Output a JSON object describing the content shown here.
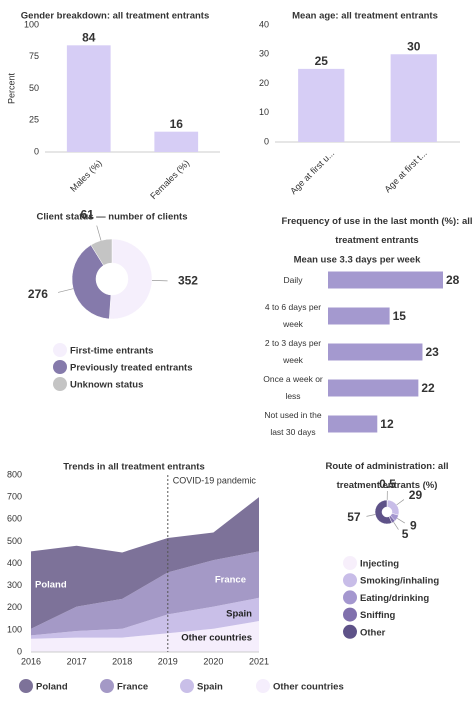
{
  "chart_data": [
    {
      "type": "bar",
      "title": "Gender breakdown: all treatment entrants",
      "ylabel": "Percent",
      "categories": [
        "Males (%)",
        "Females (%)"
      ],
      "values": [
        84,
        16
      ],
      "color": "#d6cdf5",
      "ylim": [
        0,
        100
      ],
      "yticks": [
        0,
        25,
        50,
        75,
        100
      ],
      "grid": false
    },
    {
      "type": "bar",
      "title": "Mean age: all treatment entrants",
      "categories": [
        "Age at first u...",
        "Age at first t..."
      ],
      "values": [
        25,
        30
      ],
      "color": "#d6cdf5",
      "ylim": [
        0,
        40
      ],
      "yticks": [
        0,
        10,
        20,
        30,
        40
      ],
      "grid": false
    },
    {
      "type": "pie",
      "donut": true,
      "title": "Client status — number of clients",
      "categories": [
        "First-time entrants",
        "Previously treated entrants",
        "Unknown status"
      ],
      "values": [
        352,
        276,
        61
      ],
      "colors": [
        "#f5effc",
        "#857aab",
        "#c4c4c4"
      ]
    },
    {
      "type": "bar",
      "orientation": "horizontal",
      "title": "Frequency of use in the last month (%): all treatment entrants",
      "subtitle": "Mean use 3.3 days per week",
      "categories": [
        "Daily",
        "4 to 6 days per week",
        "2 to 3 days per week",
        "Once a week or less",
        "Not used in the last 30 days"
      ],
      "values": [
        28,
        15,
        23,
        22,
        12
      ],
      "color": "#a499cf"
    },
    {
      "type": "area",
      "stacked": true,
      "title": "Trends in all treatment entrants",
      "annotation": {
        "text": "COVID-19 pandemic",
        "x": 2019
      },
      "x": [
        2016,
        2017,
        2018,
        2019,
        2020,
        2021
      ],
      "xlim": [
        2016,
        2021
      ],
      "xticks": [
        2016,
        2017,
        2018,
        2019,
        2020,
        2021
      ],
      "ylim": [
        0,
        800
      ],
      "yticks": [
        0,
        100,
        200,
        300,
        400,
        500,
        600,
        700,
        800
      ],
      "series": [
        {
          "name": "Poland",
          "color": "#7d7299",
          "values": [
            350,
            275,
            210,
            155,
            125,
            245
          ]
        },
        {
          "name": "France",
          "color": "#a499c6",
          "values": [
            30,
            110,
            135,
            190,
            210,
            210
          ]
        },
        {
          "name": "Spain",
          "color": "#c9bfe8",
          "values": [
            15,
            30,
            40,
            85,
            100,
            105
          ]
        },
        {
          "name": "Other countries",
          "color": "#f5eefc",
          "values": [
            60,
            65,
            65,
            85,
            105,
            140
          ]
        }
      ]
    },
    {
      "type": "pie",
      "donut": true,
      "title": "Route of administration: all treatment entrants (%)",
      "categories": [
        "Injecting",
        "Smoking/inhaling",
        "Eating/drinking",
        "Sniffing",
        "Other"
      ],
      "values": [
        0.5,
        29,
        9,
        5,
        57
      ],
      "colors": [
        "#f7effb",
        "#c8bde8",
        "#a497cf",
        "#8070ad",
        "#5e5288"
      ]
    }
  ]
}
